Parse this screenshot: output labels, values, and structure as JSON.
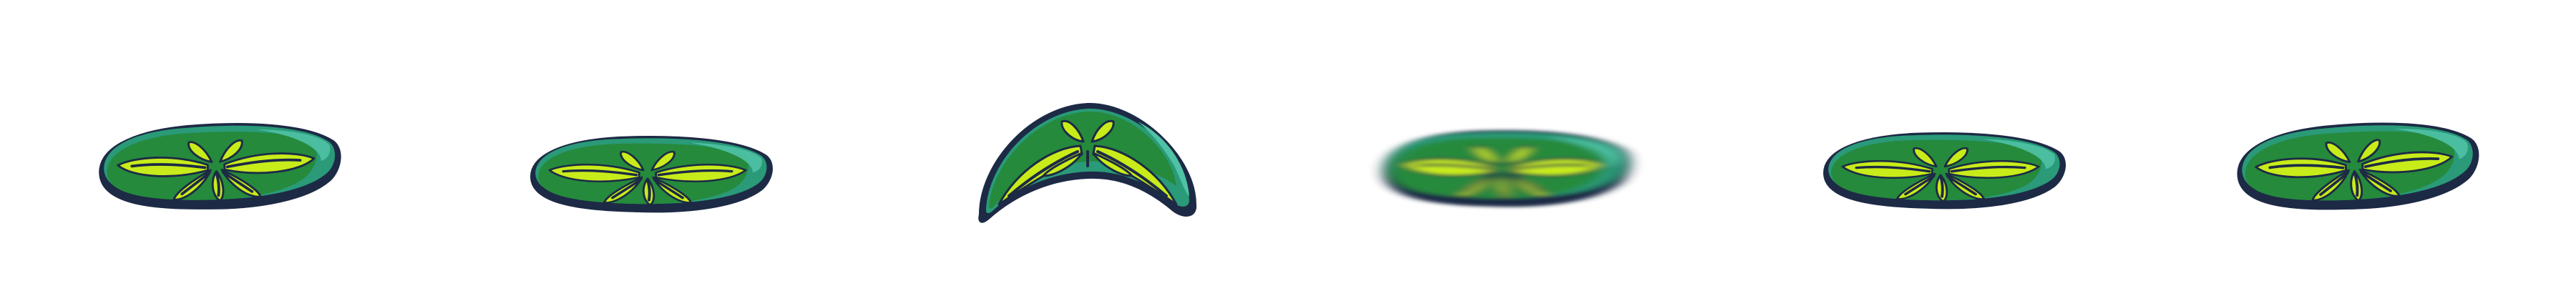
{
  "sprite_sheet": {
    "subject": "sand-dollar-platform",
    "frame_count": 6,
    "colors": {
      "outline": "#1d2a45",
      "rim": "#2a9a78",
      "body": "#258a3c",
      "highlight": "#4fc2a5",
      "petal": "#c7ec1a",
      "petal_light": "#e6f76a",
      "petal_vein": "#1d2a45"
    },
    "frames": [
      {
        "state": "idle"
      },
      {
        "state": "squash"
      },
      {
        "state": "bend"
      },
      {
        "state": "blur"
      },
      {
        "state": "squash"
      },
      {
        "state": "idle"
      }
    ]
  }
}
